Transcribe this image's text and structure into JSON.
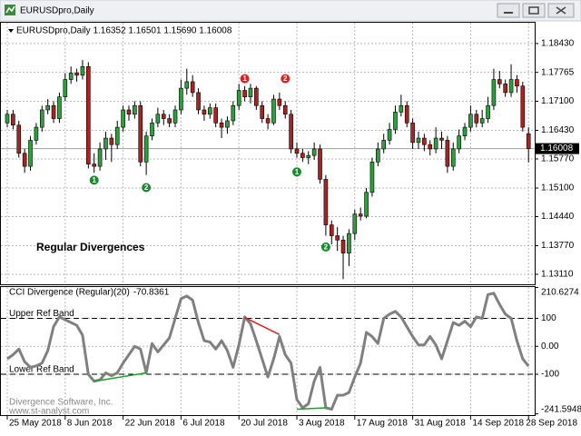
{
  "window_title": "EURUSDpro,Daily",
  "chart_data": [
    {
      "type": "candlestick",
      "header": "EURUSDpro,Daily  1.16352 1.16501 1.15690 1.16008",
      "annotation": "Regular Divergences",
      "categories": [
        "25 May 2018",
        null,
        null,
        null,
        null,
        null,
        null,
        null,
        null,
        null,
        "8 Jun 2018",
        null,
        null,
        null,
        null,
        null,
        null,
        null,
        null,
        null,
        "22 Jun 2018",
        null,
        null,
        null,
        null,
        null,
        null,
        null,
        null,
        null,
        "6 Jul 2018",
        null,
        null,
        null,
        null,
        null,
        null,
        null,
        null,
        null,
        "20 Jul 2018",
        null,
        null,
        null,
        null,
        null,
        null,
        null,
        null,
        null,
        "3 Aug 2018",
        null,
        null,
        null,
        null,
        null,
        null,
        null,
        null,
        null,
        "17 Aug 2018",
        null,
        null,
        null,
        null,
        null,
        null,
        null,
        null,
        null,
        "31 Aug 2018",
        null,
        null,
        null,
        null,
        null,
        null,
        null,
        null,
        null,
        "14 Sep 2018",
        null,
        null,
        null,
        null,
        null,
        null,
        null,
        null,
        null,
        "28 Sep 2018"
      ],
      "open": [
        1.166,
        1.168,
        1.1655,
        1.159,
        1.156,
        1.162,
        1.165,
        1.169,
        1.17,
        1.167,
        1.172,
        1.176,
        1.1775,
        1.177,
        1.179,
        1.1565,
        1.156,
        1.16,
        1.1625,
        1.161,
        1.165,
        1.169,
        1.168,
        1.17,
        1.157,
        1.163,
        1.166,
        1.168,
        1.167,
        1.166,
        1.169,
        1.174,
        1.1755,
        1.173,
        1.169,
        1.168,
        1.1695,
        1.166,
        1.165,
        1.1665,
        1.17,
        1.1735,
        1.172,
        1.174,
        1.17,
        1.167,
        1.166,
        1.1715,
        1.17,
        1.168,
        1.16,
        1.159,
        1.158,
        1.1585,
        1.16,
        1.153,
        1.1425,
        1.14,
        1.139,
        1.136,
        1.1405,
        1.145,
        1.1445,
        1.15,
        1.157,
        1.16,
        1.162,
        1.1645,
        1.1685,
        1.17,
        1.166,
        1.1615,
        1.1625,
        1.161,
        1.16,
        1.1625,
        1.162,
        1.156,
        1.16,
        1.163,
        1.165,
        1.168,
        1.166,
        1.167,
        1.17,
        1.176,
        1.175,
        1.173,
        1.176,
        1.1745,
        1.16352
      ],
      "high": [
        1.169,
        1.169,
        1.1665,
        1.16,
        1.163,
        1.166,
        1.17,
        1.1715,
        1.171,
        1.173,
        1.1775,
        1.179,
        1.1785,
        1.1805,
        1.18,
        1.159,
        1.1615,
        1.164,
        1.1635,
        1.1665,
        1.17,
        1.17,
        1.171,
        1.171,
        1.164,
        1.167,
        1.1695,
        1.169,
        1.168,
        1.17,
        1.176,
        1.1785,
        1.177,
        1.174,
        1.17,
        1.1705,
        1.1705,
        1.167,
        1.1675,
        1.171,
        1.175,
        1.1745,
        1.175,
        1.1745,
        1.171,
        1.168,
        1.1725,
        1.173,
        1.171,
        1.169,
        1.1615,
        1.16,
        1.1595,
        1.1615,
        1.161,
        1.154,
        1.1435,
        1.142,
        1.14,
        1.1415,
        1.146,
        1.1465,
        1.151,
        1.158,
        1.1615,
        1.1635,
        1.166,
        1.17,
        1.1725,
        1.171,
        1.167,
        1.164,
        1.1635,
        1.162,
        1.165,
        1.164,
        1.163,
        1.1615,
        1.1645,
        1.166,
        1.17,
        1.169,
        1.169,
        1.172,
        1.1785,
        1.178,
        1.176,
        1.1795,
        1.177,
        1.1755,
        1.16501
      ],
      "low": [
        1.165,
        1.1645,
        1.158,
        1.1545,
        1.155,
        1.161,
        1.164,
        1.168,
        1.166,
        1.166,
        1.171,
        1.175,
        1.1755,
        1.176,
        1.1555,
        1.1545,
        1.155,
        1.1575,
        1.157,
        1.16,
        1.164,
        1.1665,
        1.167,
        1.156,
        1.154,
        1.162,
        1.165,
        1.1655,
        1.165,
        1.165,
        1.168,
        1.1725,
        1.172,
        1.168,
        1.1665,
        1.167,
        1.165,
        1.1625,
        1.1635,
        1.1655,
        1.169,
        1.171,
        1.1705,
        1.169,
        1.166,
        1.1645,
        1.1655,
        1.169,
        1.167,
        1.159,
        1.158,
        1.157,
        1.1565,
        1.1575,
        1.152,
        1.14,
        1.138,
        1.1365,
        1.13,
        1.133,
        1.139,
        1.1435,
        1.144,
        1.149,
        1.156,
        1.159,
        1.161,
        1.1635,
        1.1675,
        1.165,
        1.16,
        1.16,
        1.1595,
        1.1585,
        1.159,
        1.16,
        1.1545,
        1.155,
        1.159,
        1.162,
        1.164,
        1.165,
        1.165,
        1.166,
        1.169,
        1.174,
        1.172,
        1.172,
        1.173,
        1.164,
        1.1569
      ],
      "close": [
        1.168,
        1.1655,
        1.159,
        1.156,
        1.162,
        1.165,
        1.169,
        1.17,
        1.167,
        1.172,
        1.176,
        1.1775,
        1.177,
        1.179,
        1.1565,
        1.156,
        1.16,
        1.1625,
        1.161,
        1.165,
        1.169,
        1.168,
        1.17,
        1.157,
        1.163,
        1.166,
        1.168,
        1.167,
        1.166,
        1.169,
        1.174,
        1.1755,
        1.173,
        1.169,
        1.168,
        1.1695,
        1.166,
        1.165,
        1.1665,
        1.17,
        1.1735,
        1.172,
        1.174,
        1.17,
        1.167,
        1.166,
        1.1715,
        1.17,
        1.168,
        1.16,
        1.159,
        1.158,
        1.1585,
        1.16,
        1.153,
        1.1425,
        1.14,
        1.139,
        1.136,
        1.1405,
        1.145,
        1.1445,
        1.15,
        1.157,
        1.16,
        1.162,
        1.1645,
        1.1685,
        1.17,
        1.166,
        1.1615,
        1.1625,
        1.161,
        1.16,
        1.1625,
        1.162,
        1.156,
        1.16,
        1.163,
        1.165,
        1.168,
        1.166,
        1.167,
        1.17,
        1.176,
        1.175,
        1.173,
        1.176,
        1.1745,
        1.165,
        1.16008
      ],
      "up_color": "#2e9e3e",
      "down_color": "#b0201e",
      "ylim": [
        1.1288,
        1.1891
      ],
      "yticks": [
        {
          "value": 1.1311,
          "label": "1.13110"
        },
        {
          "value": 1.1377,
          "label": "1.13770"
        },
        {
          "value": 1.1444,
          "label": "1.14440"
        },
        {
          "value": 1.151,
          "label": "1.15100"
        },
        {
          "value": 1.1577,
          "label": "1.15770"
        },
        {
          "value": 1.1643,
          "label": "1.16430"
        },
        {
          "value": 1.171,
          "label": "1.17100"
        },
        1.17765,
        {
          "value": 1.1843,
          "label": "1.18430"
        }
      ],
      "grid": true,
      "markers": [
        {
          "label": "1",
          "color": "#1a8a2e",
          "x": 15,
          "value": 1.1528
        },
        {
          "label": "2",
          "color": "#1a8a2e",
          "x": 24,
          "value": 1.1511
        },
        {
          "label": "1",
          "color": "#e02020",
          "x": 41,
          "value": 1.1762
        },
        {
          "label": "2",
          "color": "#e02020",
          "x": 48,
          "value": 1.1762
        },
        {
          "label": "1",
          "color": "#1a8a2e",
          "x": 50,
          "value": 1.1547
        },
        {
          "label": "2",
          "color": "#1a8a2e",
          "x": 55,
          "value": 1.1374
        }
      ]
    },
    {
      "type": "line",
      "title": "CCI Divergence (Regular)(20)",
      "values": [
        -45,
        -30,
        -10,
        -55,
        -75,
        -70,
        -60,
        -15,
        70,
        105,
        95,
        85,
        75,
        40,
        -100,
        -125,
        -120,
        -95,
        -105,
        -95,
        -60,
        -30,
        0,
        -10,
        -95,
        10,
        -20,
        5,
        30,
        100,
        170,
        180,
        165,
        85,
        20,
        15,
        -10,
        20,
        -15,
        -75,
        5,
        105,
        80,
        20,
        -45,
        -110,
        -45,
        35,
        -30,
        -60,
        -190,
        -220,
        -205,
        -125,
        -75,
        -220,
        -225,
        -175,
        -175,
        -165,
        -110,
        -60,
        50,
        35,
        10,
        100,
        115,
        125,
        105,
        70,
        35,
        5,
        5,
        35,
        5,
        -45,
        20,
        85,
        75,
        90,
        70,
        105,
        100,
        185,
        190,
        150,
        115,
        100,
        20,
        -45,
        -70.8361
      ],
      "color": "#808080",
      "ylim": [
        -246,
        212
      ],
      "yticks": [
        -241.5948,
        -100,
        {
          "value": 0,
          "label": "0.00"
        },
        100,
        210.6274
      ],
      "grid": true,
      "ref_bands": [
        {
          "value": 100,
          "label": "Upper Ref Band"
        },
        {
          "value": -100,
          "label": "Lower Ref Band"
        }
      ],
      "divergences": [
        {
          "color": "#1fa02a",
          "x": [
            15,
            24
          ],
          "values": [
            -125,
            -95
          ]
        },
        {
          "color": "#e02020",
          "x": [
            41,
            47
          ],
          "values": [
            103,
            42
          ]
        },
        {
          "color": "#1fa02a",
          "x": [
            50,
            55
          ],
          "values": [
            -225,
            -220
          ]
        }
      ],
      "footer": [
        "Divergence Software, Inc.",
        "www.st-analyst.com"
      ]
    }
  ]
}
